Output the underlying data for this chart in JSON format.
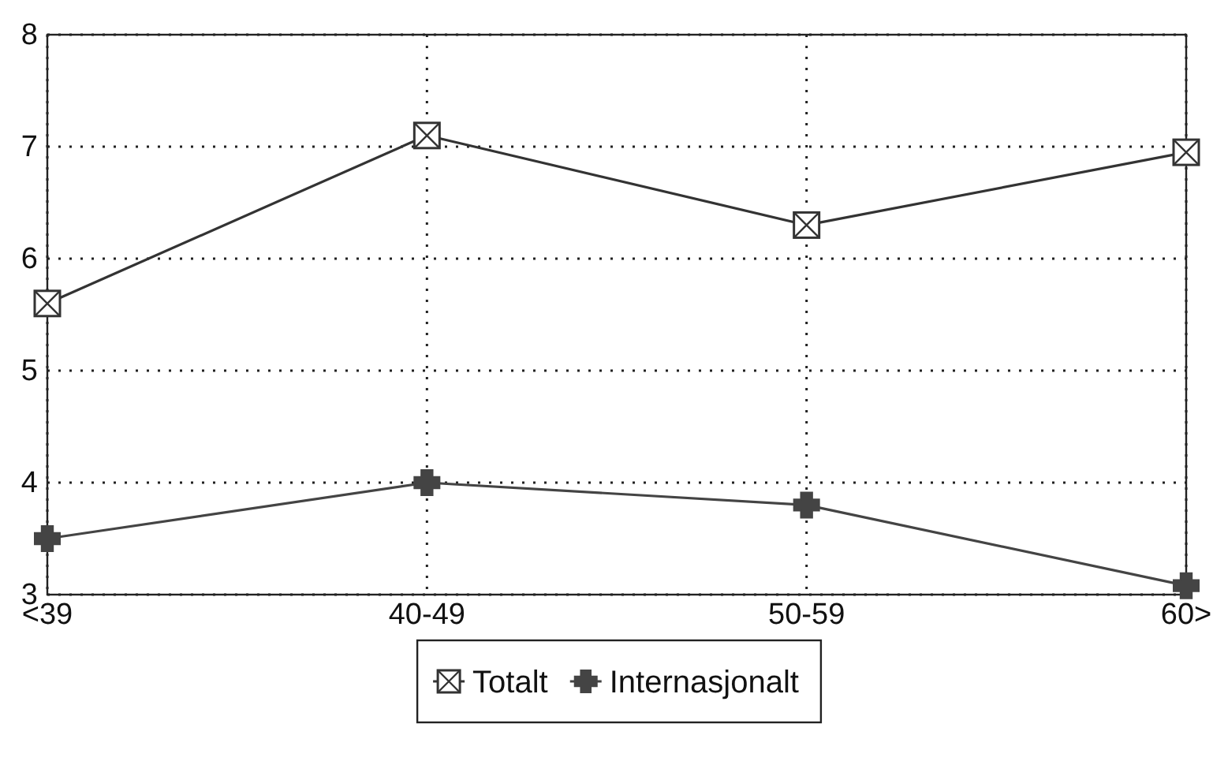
{
  "chart_data": {
    "type": "line",
    "categories": [
      "<39",
      "40-49",
      "50-59",
      "60>"
    ],
    "series": [
      {
        "name": "Totalt",
        "color": "#333333",
        "marker": "square",
        "values": [
          5.6,
          7.1,
          6.3,
          6.95
        ]
      },
      {
        "name": "Internasjonalt",
        "color": "#444444",
        "marker": "cross",
        "values": [
          3.5,
          4.0,
          3.8,
          3.08
        ]
      }
    ],
    "ylim": [
      3,
      8
    ],
    "yticks": [
      3,
      4,
      5,
      6,
      7,
      8
    ],
    "grid": true,
    "legend": "bottom"
  }
}
